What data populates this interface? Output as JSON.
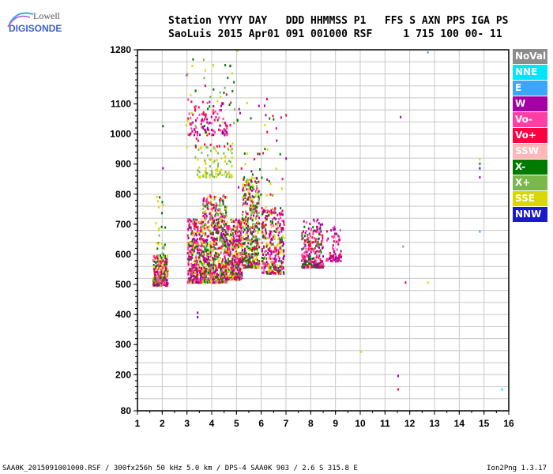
{
  "logo": {
    "line1": "Lowell",
    "line2": "DIGISONDE"
  },
  "header": {
    "line1": "Station YYYY DAY   DDD HHMMSS P1   FFS S AXN PPS IGA PS",
    "line2": "SaoLuis 2015 Apr01 091 001000 RSF     1 715 100 00- 11"
  },
  "legend": [
    {
      "label": "NoVal",
      "color": "#8c8c8c"
    },
    {
      "label": "NNE",
      "color": "#00e5ff"
    },
    {
      "label": "E",
      "color": "#3aa6ff"
    },
    {
      "label": "W",
      "color": "#a400a4"
    },
    {
      "label": "Vo-",
      "color": "#ff3fa6"
    },
    {
      "label": "Vo+",
      "color": "#ff0040"
    },
    {
      "label": "SSW",
      "color": "#ffb6b6"
    },
    {
      "label": "X-",
      "color": "#007a00"
    },
    {
      "label": "X+",
      "color": "#7ab84c"
    },
    {
      "label": "SSE",
      "color": "#d8d800"
    },
    {
      "label": "NNW",
      "color": "#1a1acc"
    }
  ],
  "footer": {
    "left": "SAA0K_2015091001000.RSF / 300fx256h 50 kHz 5.0 km / DPS-4 SAA0K 903 / 2.6 S 315.8 E",
    "right": "Ion2Png 1.3.17"
  },
  "chart_data": {
    "type": "scatter",
    "x_ticks": [
      1,
      2,
      3,
      4,
      5,
      6,
      7,
      8,
      9,
      10,
      11,
      12,
      13,
      14,
      15,
      16
    ],
    "y_ticks": [
      80,
      200,
      300,
      400,
      500,
      600,
      700,
      800,
      900,
      1000,
      1100,
      1280
    ],
    "xlim": [
      1,
      16
    ],
    "ylim": [
      80,
      1280
    ],
    "grid": true,
    "legend_position": "right",
    "clusters": [
      {
        "x": [
          1.6,
          2.2
        ],
        "y": [
          500,
          600
        ],
        "n": 260,
        "series": [
          "Vo+",
          "W",
          "SSE",
          "X-",
          "Vo-"
        ]
      },
      {
        "x": [
          1.7,
          2.1
        ],
        "y": [
          600,
          800
        ],
        "n": 25,
        "series": [
          "SSE",
          "X+",
          "X-"
        ]
      },
      {
        "x": [
          3.0,
          3.6
        ],
        "y": [
          510,
          720
        ],
        "n": 380,
        "series": [
          "W",
          "Vo+",
          "SSE",
          "X-",
          "Vo-"
        ]
      },
      {
        "x": [
          3.6,
          4.6
        ],
        "y": [
          510,
          800
        ],
        "n": 700,
        "series": [
          "SSE",
          "X-",
          "Vo+",
          "W",
          "X+",
          "Vo-"
        ]
      },
      {
        "x": [
          4.6,
          5.2
        ],
        "y": [
          520,
          720
        ],
        "n": 380,
        "series": [
          "Vo+",
          "W",
          "SSE",
          "X-",
          "Vo-"
        ]
      },
      {
        "x": [
          5.2,
          5.9
        ],
        "y": [
          560,
          860
        ],
        "n": 420,
        "series": [
          "X-",
          "SSE",
          "X+",
          "Vo+",
          "W"
        ]
      },
      {
        "x": [
          6.0,
          6.9
        ],
        "y": [
          540,
          760
        ],
        "n": 330,
        "series": [
          "Vo+",
          "W",
          "SSE",
          "X-",
          "Vo-"
        ]
      },
      {
        "x": [
          7.6,
          8.5
        ],
        "y": [
          560,
          720
        ],
        "n": 230,
        "series": [
          "Vo+",
          "Vo-",
          "W",
          "X-"
        ]
      },
      {
        "x": [
          8.6,
          9.2
        ],
        "y": [
          580,
          700
        ],
        "n": 70,
        "series": [
          "Vo+",
          "W",
          "Vo-"
        ]
      },
      {
        "x": [
          3.0,
          4.6
        ],
        "y": [
          1000,
          1120
        ],
        "n": 110,
        "series": [
          "Vo+",
          "W",
          "Vo-"
        ]
      },
      {
        "x": [
          3.3,
          4.8
        ],
        "y": [
          860,
          960
        ],
        "n": 90,
        "series": [
          "SSE",
          "X+"
        ]
      },
      {
        "x": [
          2.9,
          4.9
        ],
        "y": [
          960,
          1270
        ],
        "n": 60,
        "series": [
          "SSE",
          "X+",
          "X-",
          "Vo+"
        ]
      },
      {
        "x": [
          5.0,
          7.0
        ],
        "y": [
          800,
          1120
        ],
        "n": 50,
        "series": [
          "SSE",
          "X-",
          "Vo+",
          "W"
        ]
      }
    ],
    "points": [
      {
        "x": 2.0,
        "y": 1030,
        "series": "X-"
      },
      {
        "x": 2.0,
        "y": 890,
        "series": "W"
      },
      {
        "x": 1.8,
        "y": 780,
        "series": "SSE"
      },
      {
        "x": 3.4,
        "y": 410,
        "series": "W"
      },
      {
        "x": 3.4,
        "y": 395,
        "series": "NNW"
      },
      {
        "x": 5.0,
        "y": 1280,
        "series": "SSE"
      },
      {
        "x": 6.2,
        "y": 1120,
        "series": "Vo+"
      },
      {
        "x": 10.0,
        "y": 280,
        "series": "SSE"
      },
      {
        "x": 11.5,
        "y": 200,
        "series": "W"
      },
      {
        "x": 11.5,
        "y": 155,
        "series": "Vo+"
      },
      {
        "x": 11.6,
        "y": 1060,
        "series": "W"
      },
      {
        "x": 11.7,
        "y": 630,
        "series": "X+"
      },
      {
        "x": 11.8,
        "y": 510,
        "series": "Vo+"
      },
      {
        "x": 12.7,
        "y": 1275,
        "series": "E"
      },
      {
        "x": 12.7,
        "y": 510,
        "series": "SSE"
      },
      {
        "x": 14.8,
        "y": 920,
        "series": "SSE"
      },
      {
        "x": 14.8,
        "y": 905,
        "series": "X-"
      },
      {
        "x": 14.8,
        "y": 890,
        "series": "NNW"
      },
      {
        "x": 14.8,
        "y": 860,
        "series": "W"
      },
      {
        "x": 14.8,
        "y": 680,
        "series": "E"
      },
      {
        "x": 15.7,
        "y": 155,
        "series": "NNE"
      }
    ]
  }
}
